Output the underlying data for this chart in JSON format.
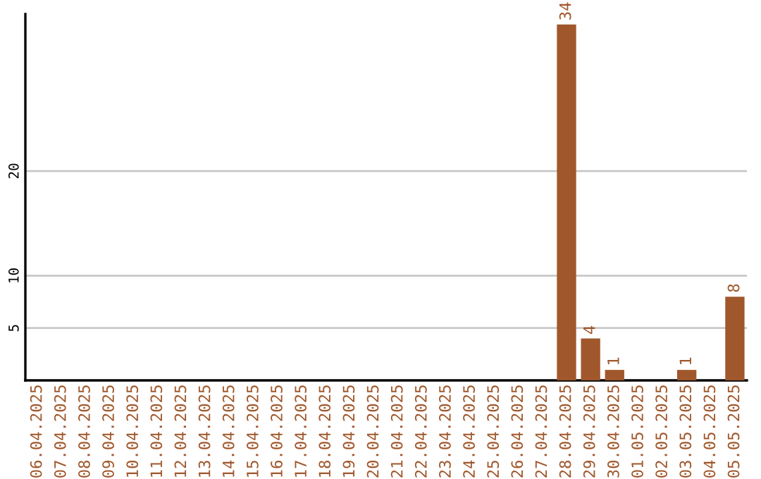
{
  "chart_data": {
    "type": "bar",
    "categories": [
      "06.04.2025",
      "07.04.2025",
      "08.04.2025",
      "09.04.2025",
      "10.04.2025",
      "11.04.2025",
      "12.04.2025",
      "13.04.2025",
      "14.04.2025",
      "15.04.2025",
      "16.04.2025",
      "17.04.2025",
      "18.04.2025",
      "19.04.2025",
      "20.04.2025",
      "21.04.2025",
      "22.04.2025",
      "23.04.2025",
      "24.04.2025",
      "25.04.2025",
      "26.04.2025",
      "27.04.2025",
      "28.04.2025",
      "29.04.2025",
      "30.04.2025",
      "01.05.2025",
      "02.05.2025",
      "03.05.2025",
      "04.05.2025",
      "05.05.2025"
    ],
    "values": [
      0,
      0,
      0,
      0,
      0,
      0,
      0,
      0,
      0,
      0,
      0,
      0,
      0,
      0,
      0,
      0,
      0,
      0,
      0,
      0,
      0,
      0,
      34,
      4,
      1,
      0,
      0,
      1,
      0,
      8
    ],
    "value_labels": [
      null,
      null,
      null,
      null,
      null,
      null,
      null,
      null,
      null,
      null,
      null,
      null,
      null,
      null,
      null,
      null,
      null,
      null,
      null,
      null,
      null,
      null,
      "34",
      "4",
      "1",
      null,
      null,
      "1",
      null,
      "8"
    ],
    "color": "#a0572b",
    "ylim": [
      0,
      35
    ],
    "yticks": [
      5,
      10,
      20
    ],
    "grid": "y"
  }
}
